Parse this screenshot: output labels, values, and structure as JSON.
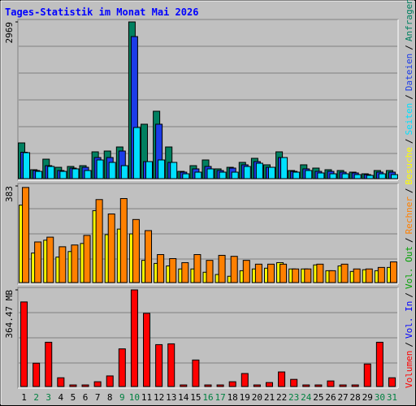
{
  "chart_data": {
    "type": "bar",
    "title": "Tages-Statistik im Monat Mai 2026",
    "categories": [
      "1",
      "2",
      "3",
      "4",
      "5",
      "6",
      "7",
      "8",
      "9",
      "10",
      "11",
      "12",
      "13",
      "14",
      "15",
      "16",
      "17",
      "18",
      "19",
      "20",
      "21",
      "22",
      "23",
      "24",
      "25",
      "26",
      "27",
      "28",
      "29",
      "30",
      "31"
    ],
    "category_colors": [
      "#000000",
      "#008040",
      "#008040",
      "#000000",
      "#000000",
      "#000000",
      "#000000",
      "#000000",
      "#008040",
      "#008040",
      "#000000",
      "#000000",
      "#000000",
      "#000000",
      "#000000",
      "#008040",
      "#008040",
      "#000000",
      "#000000",
      "#000000",
      "#000000",
      "#000000",
      "#008040",
      "#008040",
      "#000000",
      "#000000",
      "#000000",
      "#000000",
      "#000000",
      "#008040",
      "#008040"
    ],
    "separator": "/",
    "panels": [
      {
        "ylim": [
          0,
          2969
        ],
        "yticks": [
          2969
        ],
        "series": [
          {
            "name": "Anfragen",
            "color": "#008060",
            "values": [
              677,
              169,
              369,
              215,
              231,
              246,
              508,
              523,
              600,
              2969,
              1031,
              1277,
              600,
              138,
              246,
              354,
              185,
              215,
              308,
              385,
              262,
              508,
              154,
              262,
              200,
              169,
              154,
              123,
              92,
              154,
              154
            ]
          },
          {
            "name": "Dateien",
            "color": "#1c3ce8",
            "values": [
              500,
              154,
              246,
              154,
              200,
              215,
              400,
              400,
              523,
              2692,
              323,
              1031,
              308,
              123,
              185,
              231,
              154,
              200,
              262,
              323,
              215,
              400,
              138,
              185,
              138,
              138,
              123,
              108,
              77,
              123,
              123
            ]
          },
          {
            "name": "Seiten",
            "color": "#00e0ff",
            "values": [
              492,
              138,
              231,
              138,
              185,
              154,
              354,
              308,
              246,
              969,
              323,
              354,
              308,
              92,
              123,
              185,
              123,
              123,
              231,
              292,
              215,
              400,
              123,
              154,
              108,
              92,
              92,
              77,
              62,
              92,
              77
            ]
          }
        ]
      },
      {
        "ylim": [
          0,
          383
        ],
        "yticks": [
          383
        ],
        "series": [
          {
            "name": "Besuche",
            "color": "#ffff00",
            "values": [
              307,
              117,
              168,
              101,
              123,
              155,
              285,
              190,
              212,
              193,
              88,
              76,
              66,
              54,
              54,
              41,
              32,
              25,
              47,
              54,
              57,
              79,
              54,
              54,
              70,
              47,
              66,
              44,
              51,
              47,
              60
            ]
          },
          {
            "name": "Rechner",
            "color": "#ff8000",
            "values": [
              377,
              161,
              180,
              142,
              149,
              187,
              329,
              272,
              333,
              250,
              206,
              111,
              95,
              79,
              111,
              88,
              108,
              104,
              88,
              73,
              73,
              73,
              54,
              54,
              73,
              47,
              73,
              54,
              54,
              60,
              82
            ]
          }
        ]
      },
      {
        "ylim": [
          0,
          364.47
        ],
        "yticks": [
          {
            "value": 364.47,
            "label": "364.47 MB"
          }
        ],
        "series": [
          {
            "name": "Volumen",
            "color": "#ff0000",
            "values": [
              319,
              88,
              167,
              33,
              6,
              6,
              18,
              40,
              142,
              364.47,
              276,
              158,
              161,
              6,
              100,
              6,
              6,
              18,
              49,
              6,
              15,
              55,
              27,
              6,
              6,
              21,
              6,
              6,
              85,
              167,
              33
            ]
          }
        ],
        "legend_only": [
          {
            "name": "Vol. In",
            "color": "#0000ff"
          },
          {
            "name": "Vol. Out",
            "color": "#00a000"
          }
        ]
      }
    ]
  }
}
